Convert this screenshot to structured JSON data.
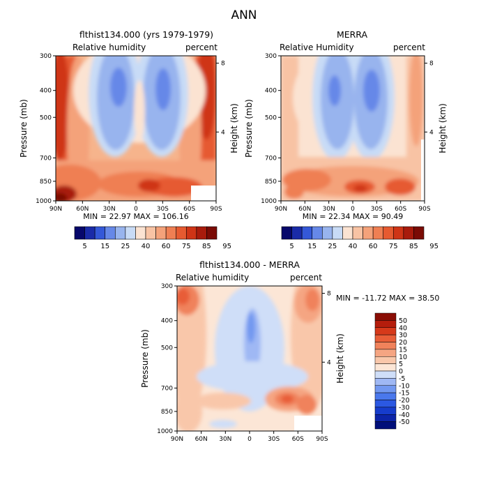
{
  "page": {
    "title": "ANN"
  },
  "panels": [
    {
      "id": "model",
      "title": "flthist134.000 (yrs 1979-1979)",
      "variable": "Relative humidity",
      "units": "percent",
      "stats": "MIN =  22.97   MAX = 106.16"
    },
    {
      "id": "obs",
      "title": "MERRA",
      "variable": "Relative Humidity",
      "units": "percent",
      "stats": "MIN =  22.34   MAX =  90.49"
    },
    {
      "id": "diff",
      "title": "flthist134.000 - MERRA",
      "variable": "Relative humidity",
      "units": "percent",
      "stats": "MIN = -11.72   MAX =  38.50"
    }
  ],
  "colorbar_abs": {
    "colors": [
      "#07086b",
      "#1a2ba8",
      "#3458d8",
      "#6688e8",
      "#98b4ee",
      "#c8dbf6",
      "#fbe3d2",
      "#f8c3a4",
      "#f4a27a",
      "#ef7f53",
      "#e65a30",
      "#cf3416",
      "#a81b0c",
      "#7a0b05"
    ],
    "labels": [
      "5",
      "15",
      "25",
      "40",
      "60",
      "75",
      "85",
      "95"
    ]
  },
  "colorbar_diff": {
    "colors": [
      "#000f7a",
      "#0c24a8",
      "#163ccc",
      "#2b58e2",
      "#4a78ec",
      "#7298f0",
      "#9fb8f4",
      "#cfdef8",
      "#fce6d6",
      "#f9c7aa",
      "#f5a582",
      "#f0825b",
      "#e85d37",
      "#d6391a",
      "#b51d0c",
      "#8a0d05"
    ],
    "labels": [
      "50",
      "40",
      "30",
      "20",
      "15",
      "10",
      "5",
      "0",
      "-5",
      "-10",
      "-15",
      "-20",
      "-30",
      "-40",
      "-50"
    ]
  },
  "chart_data": [
    {
      "type": "heatmap",
      "panel": "model",
      "title": "flthist134.000 (yrs 1979-1979)",
      "subtitle": "Relative humidity",
      "units": "percent",
      "ylabel": "Pressure (mb)",
      "ylabel_right": "Height (km)",
      "x_ticks": [
        "90N",
        "60N",
        "30N",
        "0",
        "30S",
        "60S",
        "90S"
      ],
      "y_ticks": [
        "300",
        "400",
        "500",
        "700",
        "850",
        "1000"
      ],
      "y_ticks_right": [
        "8",
        "4"
      ],
      "min": 22.97,
      "max": 106.16
    },
    {
      "type": "heatmap",
      "panel": "obs",
      "title": "MERRA",
      "subtitle": "Relative Humidity",
      "units": "percent",
      "ylabel": "Pressure (mb)",
      "ylabel_right": "Height (km)",
      "x_ticks": [
        "90N",
        "60N",
        "30N",
        "0",
        "30S",
        "60S",
        "90S"
      ],
      "y_ticks": [
        "300",
        "400",
        "500",
        "700",
        "850",
        "1000"
      ],
      "y_ticks_right": [
        "8",
        "4"
      ],
      "min": 22.34,
      "max": 90.49
    },
    {
      "type": "heatmap",
      "panel": "diff",
      "title": "flthist134.000 - MERRA",
      "subtitle": "Relative humidity",
      "units": "percent",
      "ylabel": "Pressure (mb)",
      "ylabel_right": "Height (km)",
      "x_ticks": [
        "90N",
        "60N",
        "30N",
        "0",
        "30S",
        "60S",
        "90S"
      ],
      "y_ticks": [
        "300",
        "400",
        "500",
        "700",
        "850",
        "1000"
      ],
      "y_ticks_right": [
        "8",
        "4"
      ],
      "min": -11.72,
      "max": 38.5
    }
  ]
}
